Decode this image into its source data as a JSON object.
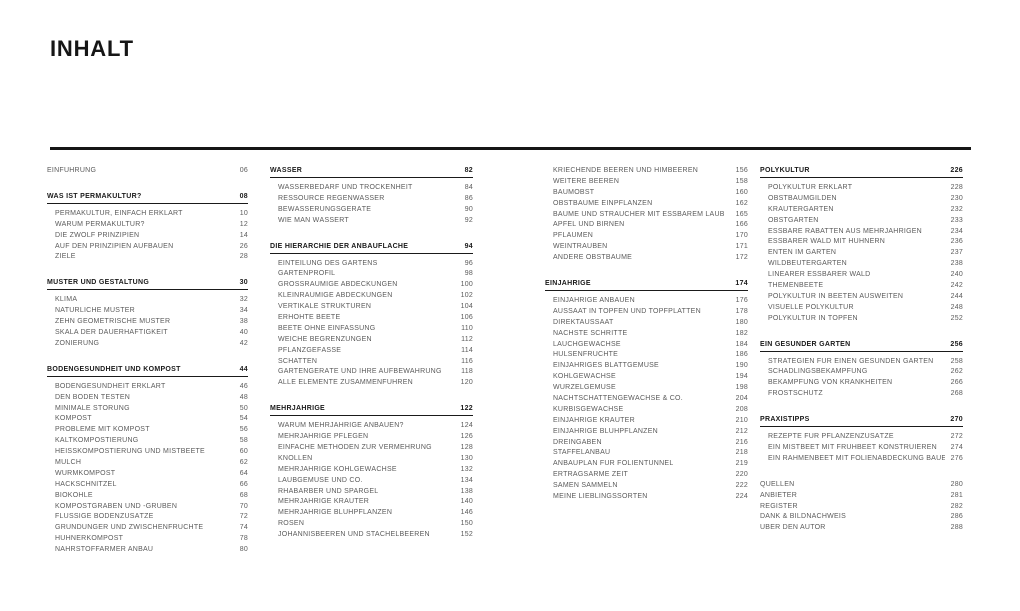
{
  "page_title": "INHALT",
  "colors": {
    "heading_text": "#161616",
    "item_text": "#5b5b5b",
    "rule": "#161616"
  },
  "columns": [
    {
      "blocks": [
        {
          "type": "entry",
          "label": "EINFÜHRUNG",
          "page": "06"
        },
        {
          "type": "section",
          "title": "WAS IST PERMAKULTUR?",
          "page": "08",
          "items": [
            {
              "label": "PERMAKULTUR, EINFACH ERKLÄRT",
              "page": "10"
            },
            {
              "label": "WARUM PERMAKULTUR?",
              "page": "12"
            },
            {
              "label": "DIE ZWÖLF PRINZIPIEN",
              "page": "14"
            },
            {
              "label": "AUF DEN PRINZIPIEN AUFBAUEN",
              "page": "26"
            },
            {
              "label": "ZIELE",
              "page": "28"
            }
          ]
        },
        {
          "type": "section",
          "title": "MUSTER UND GESTALTUNG",
          "page": "30",
          "items": [
            {
              "label": "KLIMA",
              "page": "32"
            },
            {
              "label": "NATÜRLICHE MUSTER",
              "page": "34"
            },
            {
              "label": "ZEHN GEOMETRISCHE MUSTER",
              "page": "38"
            },
            {
              "label": "SKALA DER DAUERHAFTIGKEIT",
              "page": "40"
            },
            {
              "label": "ZONIERUNG",
              "page": "42"
            }
          ]
        },
        {
          "type": "section",
          "title": "BODENGESUNDHEIT UND KOMPOST",
          "page": "44",
          "items": [
            {
              "label": "BODENGESUNDHEIT ERKLÄRT",
              "page": "46"
            },
            {
              "label": "DEN BODEN TESTEN",
              "page": "48"
            },
            {
              "label": "MINIMALE STÖRUNG",
              "page": "50"
            },
            {
              "label": "KOMPOST",
              "page": "54"
            },
            {
              "label": "PROBLEME MIT KOMPOST",
              "page": "56"
            },
            {
              "label": "KALTKOMPOSTIERUNG",
              "page": "58"
            },
            {
              "label": "HEISSKOMPOSTIERUNG UND MISTBEETE",
              "page": "60"
            },
            {
              "label": "MULCH",
              "page": "62"
            },
            {
              "label": "WURMKOMPOST",
              "page": "64"
            },
            {
              "label": "HACKSCHNITZEL",
              "page": "66"
            },
            {
              "label": "BIOKOHLE",
              "page": "68"
            },
            {
              "label": "KOMPOSTGRÄBEN UND -GRUBEN",
              "page": "70"
            },
            {
              "label": "FLÜSSIGE BODENZUSÄTZE",
              "page": "72"
            },
            {
              "label": "GRÜNDÜNGER UND ZWISCHENFRÜCHTE",
              "page": "74"
            },
            {
              "label": "HÜHNERKOMPOST",
              "page": "78"
            },
            {
              "label": "NÄHRSTOFFARMER ANBAU",
              "page": "80"
            }
          ]
        }
      ]
    },
    {
      "blocks": [
        {
          "type": "section",
          "title": "WASSER",
          "page": "82",
          "items": [
            {
              "label": "WASSERBEDARF UND TROCKENHEIT",
              "page": "84"
            },
            {
              "label": "RESSOURCE REGENWASSER",
              "page": "86"
            },
            {
              "label": "BEWÄSSERUNGSGERÄTE",
              "page": "90"
            },
            {
              "label": "WIE MAN WÄSSERT",
              "page": "92"
            }
          ]
        },
        {
          "type": "section",
          "title": "DIE HIERARCHIE DER ANBAUFLÄCHE",
          "page": "94",
          "items": [
            {
              "label": "EINTEILUNG DES GARTENS",
              "page": "96"
            },
            {
              "label": "GARTENPROFIL",
              "page": "98"
            },
            {
              "label": "GROSSRÄUMIGE ABDECKUNGEN",
              "page": "100"
            },
            {
              "label": "KLEINRÄUMIGE ABDECKUNGEN",
              "page": "102"
            },
            {
              "label": "VERTIKALE STRUKTUREN",
              "page": "104"
            },
            {
              "label": "ERHÖHTE BEETE",
              "page": "106"
            },
            {
              "label": "BEETE OHNE EINFASSUNG",
              "page": "110"
            },
            {
              "label": "WEICHE BEGRENZUNGEN",
              "page": "112"
            },
            {
              "label": "PFLANZGEFÄSSE",
              "page": "114"
            },
            {
              "label": "SCHATTEN",
              "page": "116"
            },
            {
              "label": "GARTENGERÄTE UND IHRE AUFBEWAHRUNG",
              "page": "118"
            },
            {
              "label": "ALLE ELEMENTE ZUSAMMENFÜHREN",
              "page": "120"
            }
          ]
        },
        {
          "type": "section",
          "title": "MEHRJÄHRIGE",
          "page": "122",
          "items": [
            {
              "label": "WARUM MEHRJÄHRIGE ANBAUEN?",
              "page": "124"
            },
            {
              "label": "MEHRJÄHRIGE PFLEGEN",
              "page": "126"
            },
            {
              "label": "EINFACHE METHODEN ZUR VERMEHRUNG",
              "page": "128"
            },
            {
              "label": "KNOLLEN",
              "page": "130"
            },
            {
              "label": "MEHRJÄHRIGE KOHLGEWÄCHSE",
              "page": "132"
            },
            {
              "label": "LAUBGEMÜSE UND CO.",
              "page": "134"
            },
            {
              "label": "RHABARBER UND SPARGEL",
              "page": "138"
            },
            {
              "label": "MEHRJÄHRIGE KRÄUTER",
              "page": "140"
            },
            {
              "label": "MEHRJÄHRIGE BLÜHPFLANZEN",
              "page": "146"
            },
            {
              "label": "ROSEN",
              "page": "150"
            },
            {
              "label": "JOHANNISBEEREN UND STACHELBEEREN",
              "page": "152"
            }
          ]
        }
      ]
    },
    {
      "blocks": [
        {
          "type": "items",
          "items": [
            {
              "label": "KRIECHENDE BEEREN UND HIMBEEREN",
              "page": "156"
            },
            {
              "label": "WEITERE BEEREN",
              "page": "158"
            },
            {
              "label": "BAUMOBST",
              "page": "160"
            },
            {
              "label": "OBSTBÄUME EINPFLANZEN",
              "page": "162"
            },
            {
              "label": "BÄUME UND STRÄUCHER MIT ESSBAREM LAUB",
              "page": "165"
            },
            {
              "label": "ÄPFEL UND BIRNEN",
              "page": "166"
            },
            {
              "label": "PFLAUMEN",
              "page": "170"
            },
            {
              "label": "WEINTRAUBEN",
              "page": "171"
            },
            {
              "label": "ANDERE OBSTBÄUME",
              "page": "172"
            }
          ]
        },
        {
          "type": "section",
          "title": "EINJÄHRIGE",
          "page": "174",
          "items": [
            {
              "label": "EINJÄHRIGE ANBAUEN",
              "page": "176"
            },
            {
              "label": "AUSSAAT IN TÖPFEN UND TOPFPLATTEN",
              "page": "178"
            },
            {
              "label": "DIREKTAUSSAAT",
              "page": "180"
            },
            {
              "label": "NÄCHSTE SCHRITTE",
              "page": "182"
            },
            {
              "label": "LAUCHGEWÄCHSE",
              "page": "184"
            },
            {
              "label": "HÜLSENFRÜCHTE",
              "page": "186"
            },
            {
              "label": "EINJÄHRIGES BLATTGEMÜSE",
              "page": "190"
            },
            {
              "label": "KOHLGEWÄCHSE",
              "page": "194"
            },
            {
              "label": "WURZELGEMÜSE",
              "page": "198"
            },
            {
              "label": "NACHTSCHATTENGEWÄCHSE & CO.",
              "page": "204"
            },
            {
              "label": "KÜRBISGEWÄCHSE",
              "page": "208"
            },
            {
              "label": "EINJÄHRIGE KRÄUTER",
              "page": "210"
            },
            {
              "label": "EINJÄHRIGE BLÜHPFLANZEN",
              "page": "212"
            },
            {
              "label": "DREINGABEN",
              "page": "216"
            },
            {
              "label": "STAFFELANBAU",
              "page": "218"
            },
            {
              "label": "ANBAUPLAN FÜR FOLIENTUNNEL",
              "page": "219"
            },
            {
              "label": "ERTRAGSARME ZEIT",
              "page": "220"
            },
            {
              "label": "SAMEN SAMMELN",
              "page": "222"
            },
            {
              "label": "MEINE LIEBLINGSSORTEN",
              "page": "224"
            }
          ]
        }
      ]
    },
    {
      "blocks": [
        {
          "type": "section",
          "title": "POLYKULTUR",
          "page": "226",
          "items": [
            {
              "label": "POLYKULTUR ERKLÄRT",
              "page": "228"
            },
            {
              "label": "OBSTBAUMGILDEN",
              "page": "230"
            },
            {
              "label": "KRÄUTERGARTEN",
              "page": "232"
            },
            {
              "label": "OBSTGARTEN",
              "page": "233"
            },
            {
              "label": "ESSBARE RABATTEN AUS MEHRJÄHRIGEN",
              "page": "234"
            },
            {
              "label": "ESSBARER WALD MIT HÜHNERN",
              "page": "236"
            },
            {
              "label": "ENTEN IM GARTEN",
              "page": "237"
            },
            {
              "label": "WILDBEUTERGARTEN",
              "page": "238"
            },
            {
              "label": "LINEARER ESSBARER WALD",
              "page": "240"
            },
            {
              "label": "THEMENBEETE",
              "page": "242"
            },
            {
              "label": "POLYKULTUR IN BEETEN AUSWEITEN",
              "page": "244"
            },
            {
              "label": "VISUELLE POLYKULTUR",
              "page": "248"
            },
            {
              "label": "POLYKULTUR IN TÖPFEN",
              "page": "252"
            }
          ]
        },
        {
          "type": "section",
          "title": "EIN GESUNDER GARTEN",
          "page": "256",
          "items": [
            {
              "label": "STRATEGIEN FÜR EINEN GESUNDEN GARTEN",
              "page": "258"
            },
            {
              "label": "SCHÄDLINGSBEKÄMPFUNG",
              "page": "262"
            },
            {
              "label": "BEKÄMPFUNG VON KRANKHEITEN",
              "page": "266"
            },
            {
              "label": "FROSTSCHUTZ",
              "page": "268"
            }
          ]
        },
        {
          "type": "section",
          "title": "PRAXISTIPPS",
          "page": "270",
          "items": [
            {
              "label": "REZEPTE FÜR PFLANZENZUSÄTZE",
              "page": "272"
            },
            {
              "label": "EIN MISTBEET MIT FRÜHBEET KONSTRUIEREN",
              "page": "274"
            },
            {
              "label": "EIN RAHMENBEET MIT FOLIENABDECKUNG BAUEN",
              "page": "276"
            }
          ]
        },
        {
          "type": "entries",
          "items": [
            {
              "label": "QUELLEN",
              "page": "280"
            },
            {
              "label": "ANBIETER",
              "page": "281"
            },
            {
              "label": "REGISTER",
              "page": "282"
            },
            {
              "label": "DANK & BILDNACHWEIS",
              "page": "286"
            },
            {
              "label": "ÜBER DEN AUTOR",
              "page": "288"
            }
          ]
        }
      ]
    }
  ]
}
